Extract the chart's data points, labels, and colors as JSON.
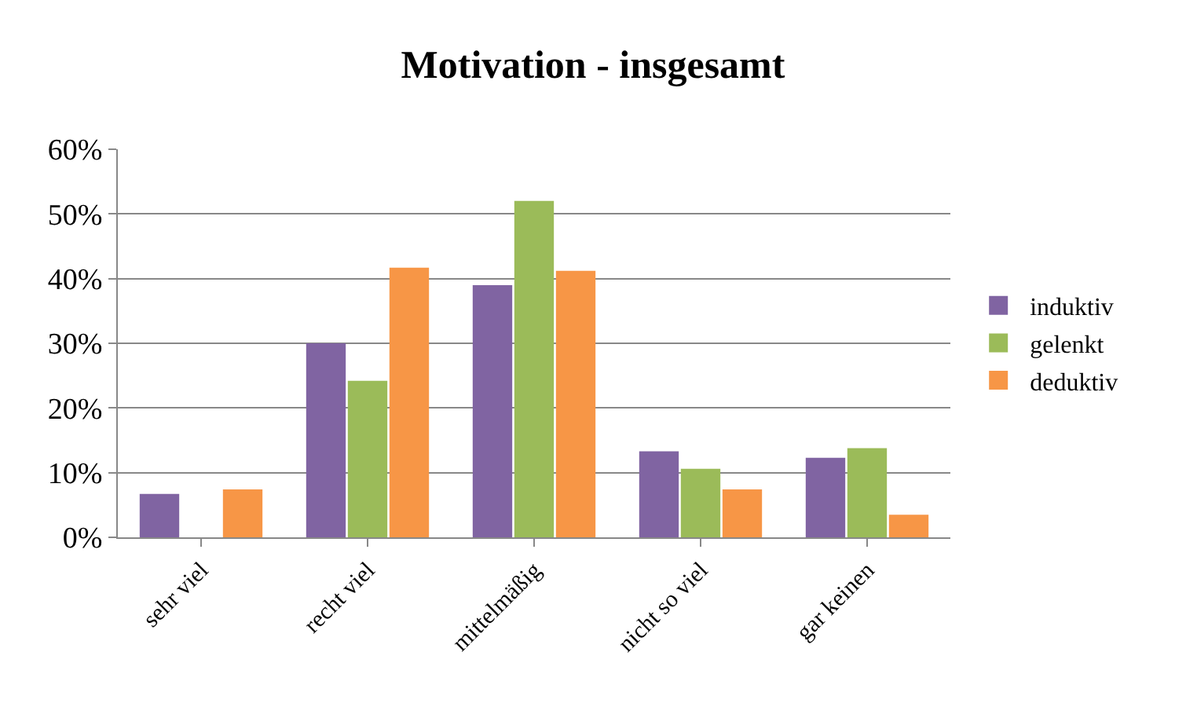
{
  "chart_data": {
    "type": "bar",
    "title": "Motivation - insgesamt",
    "categories": [
      "sehr viel",
      "recht viel",
      "mittelmäßig",
      "nicht so viel",
      "gar keinen"
    ],
    "series": [
      {
        "name": "induktiv",
        "color": "#8064a2",
        "values": [
          6.7,
          30,
          39,
          13.3,
          12.3
        ]
      },
      {
        "name": "gelenkt",
        "color": "#9bbb59",
        "values": [
          0,
          24.2,
          52,
          10.6,
          13.8
        ]
      },
      {
        "name": "deduktiv",
        "color": "#f79646",
        "values": [
          7.4,
          41.7,
          41.2,
          7.4,
          3.5
        ]
      }
    ],
    "ylim": [
      0,
      60
    ],
    "yticks": [
      {
        "value": 0,
        "label": "0%"
      },
      {
        "value": 10,
        "label": "10%"
      },
      {
        "value": 20,
        "label": "20%"
      },
      {
        "value": 30,
        "label": "30%"
      },
      {
        "value": 40,
        "label": "40%"
      },
      {
        "value": 50,
        "label": "50%"
      },
      {
        "value": 60,
        "label": "60%"
      }
    ],
    "grid": "y",
    "legend": "right"
  }
}
